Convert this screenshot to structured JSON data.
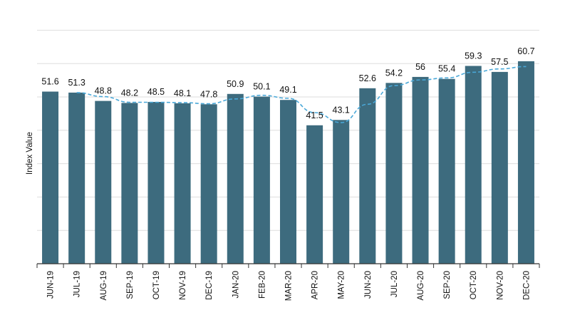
{
  "chart_data": {
    "type": "bar",
    "title": "",
    "xlabel": "",
    "ylabel": "Index Value",
    "ylim": [
      0,
      70
    ],
    "grid": true,
    "legend": "none",
    "categories": [
      "JUN-19",
      "JUL-19",
      "AUG-19",
      "SEP-19",
      "OCT-19",
      "NOV-19",
      "DEC-19",
      "JAN-20",
      "FEB-20",
      "MAR-20",
      "APR-20",
      "MAY-20",
      "JUN-20",
      "JUL-20",
      "AUG-20",
      "SEP-20",
      "OCT-20",
      "NOV-20",
      "DEC-20"
    ],
    "values": [
      51.6,
      51.3,
      48.8,
      48.2,
      48.5,
      48.1,
      47.8,
      50.9,
      50.1,
      49.1,
      41.5,
      43.1,
      52.6,
      54.2,
      56,
      55.4,
      59.3,
      57.5,
      60.7
    ],
    "trend_line": {
      "style": "dashed",
      "values": [
        null,
        51.3,
        50.1,
        48.4,
        48.4,
        48.3,
        47.95,
        49.4,
        50.5,
        49.6,
        45.3,
        42.3,
        47.8,
        53.4,
        55.1,
        55.7,
        57.4,
        58.4,
        59.1
      ]
    },
    "colors": {
      "bar": "#3d6b7e",
      "trend": "#4aa8d8",
      "grid": "#dedede",
      "axis": "#333333"
    }
  }
}
